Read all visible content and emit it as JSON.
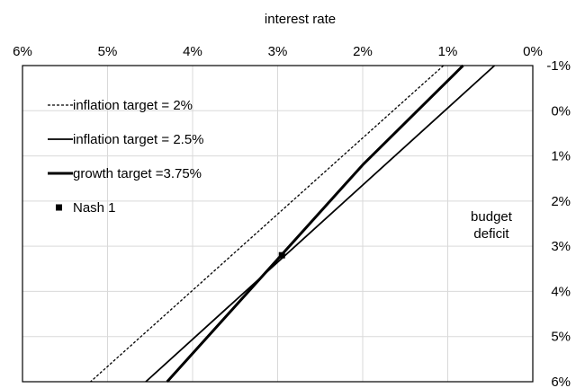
{
  "chart_data": {
    "type": "line",
    "title": "",
    "xlabel": "interest rate",
    "ylabel": "budget deficit",
    "ylabel_lines": [
      "budget",
      "deficit"
    ],
    "x_axis": {
      "position": "top",
      "reversed": true,
      "range": [
        6,
        0
      ],
      "ticks": [
        6,
        5,
        4,
        3,
        2,
        1,
        0
      ],
      "tick_labels": [
        "6%",
        "5%",
        "4%",
        "3%",
        "2%",
        "1%",
        "0%"
      ]
    },
    "y_axis": {
      "position": "right",
      "reversed": true,
      "range": [
        -1,
        6
      ],
      "ticks": [
        -1,
        0,
        1,
        2,
        3,
        4,
        5,
        6
      ],
      "tick_labels": [
        "-1%",
        "0%",
        "1%",
        "2%",
        "3%",
        "4%",
        "5%",
        "6%"
      ]
    },
    "grid": true,
    "legend_position": "top-left",
    "series": [
      {
        "name": "inflation target = 2%",
        "style": "dashed",
        "width": 1.3,
        "points": [
          [
            1.05,
            -1.0
          ],
          [
            5.2,
            6.0
          ]
        ]
      },
      {
        "name": "inflation target = 2.5%",
        "style": "solid",
        "width": 1.8,
        "points": [
          [
            0.45,
            -1.0
          ],
          [
            4.55,
            6.0
          ]
        ]
      },
      {
        "name": "growth target =3.75%",
        "style": "solid",
        "width": 3.0,
        "points": [
          [
            0.82,
            -1.0
          ],
          [
            2.0,
            1.2
          ],
          [
            4.3,
            6.0
          ]
        ]
      },
      {
        "name": "Nash 1",
        "style": "marker",
        "points": [
          [
            2.95,
            3.2
          ]
        ]
      }
    ]
  }
}
